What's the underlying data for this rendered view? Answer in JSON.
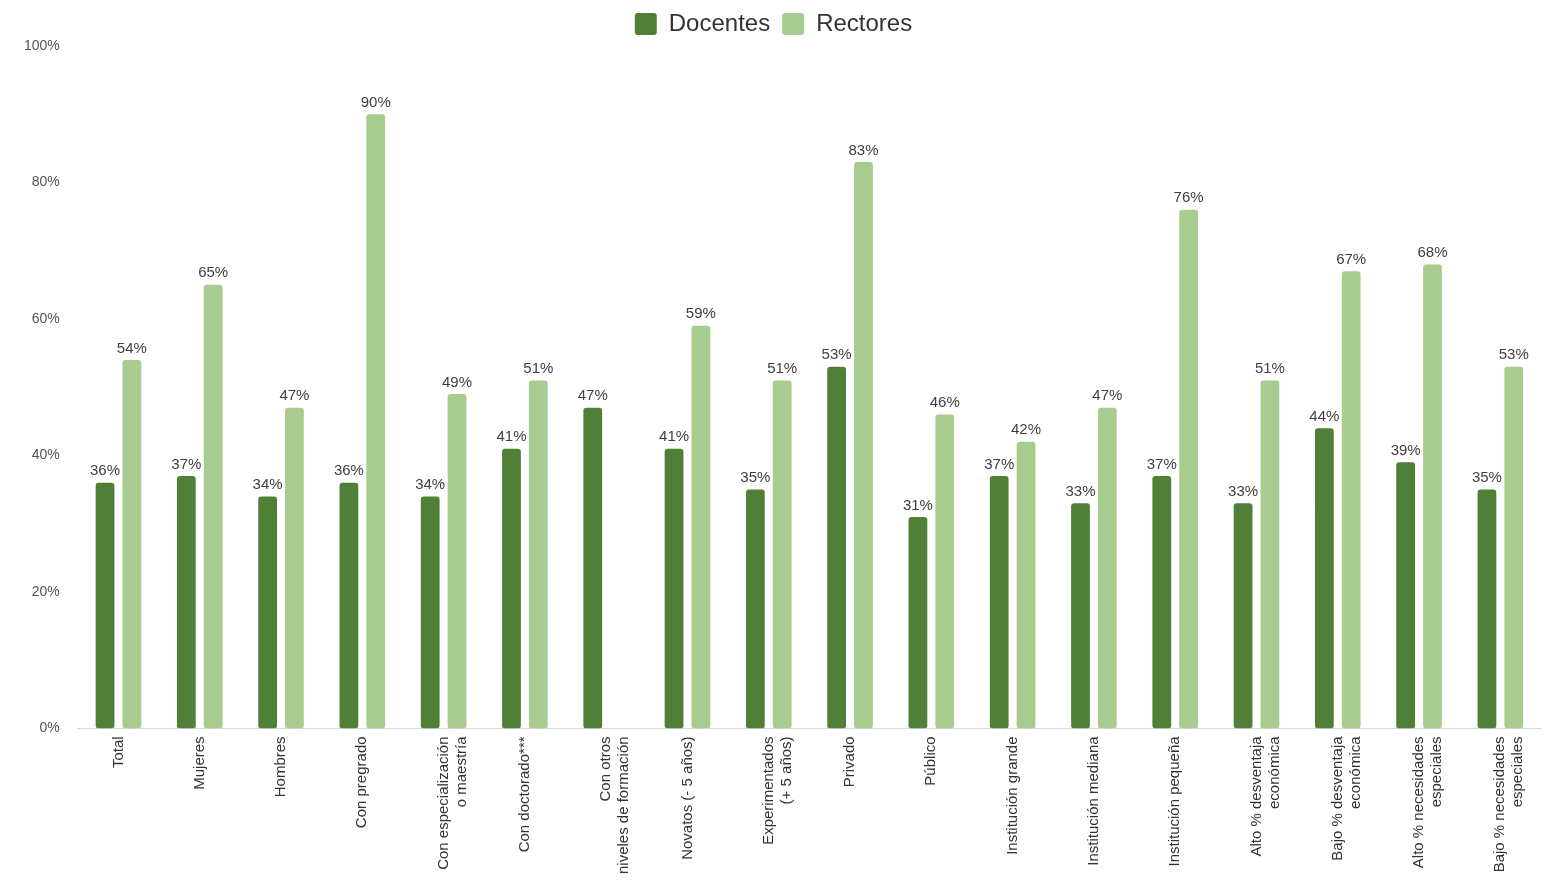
{
  "chart_data": {
    "type": "bar",
    "categories": [
      "Total",
      "Mujeres",
      "Hombres",
      "Con pregrado",
      "Con especialización\no maestría",
      "Con doctorado***",
      "Con otros\nniveles de formación",
      "Novatos (- 5 años)",
      "Experimentados\n(+ 5 años)",
      "Privado",
      "Público",
      "Institución grande",
      "Institución mediana",
      "Institución pequeña",
      "Alto % desventaja\neconómica",
      "Bajo % desventaja\neconómica",
      "Alto % necesidades\nespeciales",
      "Bajo % necesidades\nespeciales"
    ],
    "series": [
      {
        "name": "Docentes",
        "color": "#507f38",
        "values": [
          36,
          37,
          34,
          36,
          34,
          41,
          47,
          41,
          35,
          53,
          31,
          37,
          33,
          37,
          33,
          44,
          39,
          35
        ],
        "value_labels": [
          "36%",
          "37%",
          "34%",
          "36%",
          "34%",
          "41%",
          "47%",
          "41%",
          "35%",
          "53%",
          "31%",
          "37%",
          "33%",
          "37%",
          "33%",
          "44%",
          "39%",
          "35%"
        ]
      },
      {
        "name": "Rectores",
        "color": "#a8cc8f",
        "values": [
          54,
          65,
          47,
          90,
          49,
          51,
          null,
          59,
          51,
          83,
          46,
          42,
          47,
          76,
          51,
          67,
          68,
          53
        ],
        "value_labels": [
          "54%",
          "65%",
          "47%",
          "90%",
          "49%",
          "51%",
          null,
          "59%",
          "51%",
          "83%",
          "46%",
          "42%",
          "47%",
          "76%",
          "51%",
          "67%",
          "68%",
          "53%"
        ]
      }
    ],
    "ylim": [
      0,
      100
    ],
    "yticks": [
      {
        "value": 0,
        "label": "0%"
      },
      {
        "value": 20,
        "label": "20%"
      },
      {
        "value": 40,
        "label": "40%"
      },
      {
        "value": 60,
        "label": "60%"
      },
      {
        "value": 80,
        "label": "80%"
      },
      {
        "value": 100,
        "label": "100%"
      }
    ],
    "grid": false,
    "legend": "top"
  }
}
